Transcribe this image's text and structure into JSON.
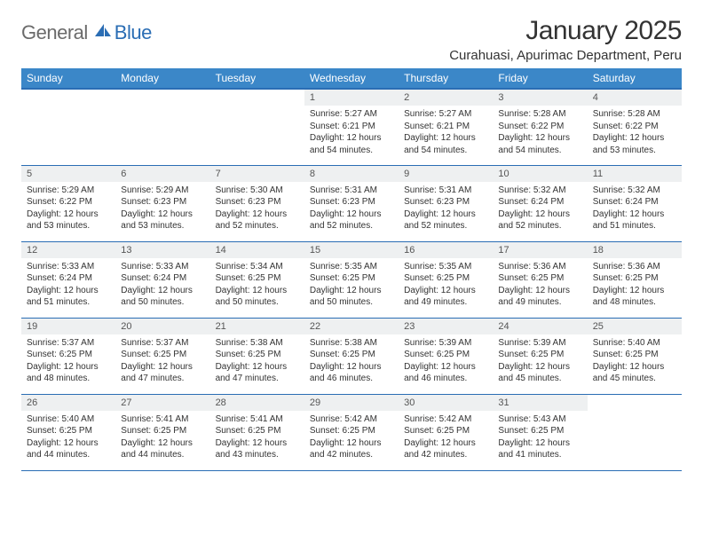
{
  "brand": {
    "part1": "General",
    "part2": "Blue"
  },
  "title": "January 2025",
  "location": "Curahuasi, Apurimac Department, Peru",
  "colors": {
    "header_bg": "#3b87c8",
    "header_border": "#2a6db4",
    "row_border": "#2a6db4",
    "daynum_bg": "#eef0f1",
    "brand_gray": "#6b6b6b",
    "brand_blue": "#2a6db4",
    "text": "#333333",
    "page_bg": "#ffffff"
  },
  "weekdays": [
    "Sunday",
    "Monday",
    "Tuesday",
    "Wednesday",
    "Thursday",
    "Friday",
    "Saturday"
  ],
  "weeks": [
    [
      null,
      null,
      null,
      {
        "n": "1",
        "sr": "5:27 AM",
        "ss": "6:21 PM",
        "dl": "12 hours and 54 minutes."
      },
      {
        "n": "2",
        "sr": "5:27 AM",
        "ss": "6:21 PM",
        "dl": "12 hours and 54 minutes."
      },
      {
        "n": "3",
        "sr": "5:28 AM",
        "ss": "6:22 PM",
        "dl": "12 hours and 54 minutes."
      },
      {
        "n": "4",
        "sr": "5:28 AM",
        "ss": "6:22 PM",
        "dl": "12 hours and 53 minutes."
      }
    ],
    [
      {
        "n": "5",
        "sr": "5:29 AM",
        "ss": "6:22 PM",
        "dl": "12 hours and 53 minutes."
      },
      {
        "n": "6",
        "sr": "5:29 AM",
        "ss": "6:23 PM",
        "dl": "12 hours and 53 minutes."
      },
      {
        "n": "7",
        "sr": "5:30 AM",
        "ss": "6:23 PM",
        "dl": "12 hours and 52 minutes."
      },
      {
        "n": "8",
        "sr": "5:31 AM",
        "ss": "6:23 PM",
        "dl": "12 hours and 52 minutes."
      },
      {
        "n": "9",
        "sr": "5:31 AM",
        "ss": "6:23 PM",
        "dl": "12 hours and 52 minutes."
      },
      {
        "n": "10",
        "sr": "5:32 AM",
        "ss": "6:24 PM",
        "dl": "12 hours and 52 minutes."
      },
      {
        "n": "11",
        "sr": "5:32 AM",
        "ss": "6:24 PM",
        "dl": "12 hours and 51 minutes."
      }
    ],
    [
      {
        "n": "12",
        "sr": "5:33 AM",
        "ss": "6:24 PM",
        "dl": "12 hours and 51 minutes."
      },
      {
        "n": "13",
        "sr": "5:33 AM",
        "ss": "6:24 PM",
        "dl": "12 hours and 50 minutes."
      },
      {
        "n": "14",
        "sr": "5:34 AM",
        "ss": "6:25 PM",
        "dl": "12 hours and 50 minutes."
      },
      {
        "n": "15",
        "sr": "5:35 AM",
        "ss": "6:25 PM",
        "dl": "12 hours and 50 minutes."
      },
      {
        "n": "16",
        "sr": "5:35 AM",
        "ss": "6:25 PM",
        "dl": "12 hours and 49 minutes."
      },
      {
        "n": "17",
        "sr": "5:36 AM",
        "ss": "6:25 PM",
        "dl": "12 hours and 49 minutes."
      },
      {
        "n": "18",
        "sr": "5:36 AM",
        "ss": "6:25 PM",
        "dl": "12 hours and 48 minutes."
      }
    ],
    [
      {
        "n": "19",
        "sr": "5:37 AM",
        "ss": "6:25 PM",
        "dl": "12 hours and 48 minutes."
      },
      {
        "n": "20",
        "sr": "5:37 AM",
        "ss": "6:25 PM",
        "dl": "12 hours and 47 minutes."
      },
      {
        "n": "21",
        "sr": "5:38 AM",
        "ss": "6:25 PM",
        "dl": "12 hours and 47 minutes."
      },
      {
        "n": "22",
        "sr": "5:38 AM",
        "ss": "6:25 PM",
        "dl": "12 hours and 46 minutes."
      },
      {
        "n": "23",
        "sr": "5:39 AM",
        "ss": "6:25 PM",
        "dl": "12 hours and 46 minutes."
      },
      {
        "n": "24",
        "sr": "5:39 AM",
        "ss": "6:25 PM",
        "dl": "12 hours and 45 minutes."
      },
      {
        "n": "25",
        "sr": "5:40 AM",
        "ss": "6:25 PM",
        "dl": "12 hours and 45 minutes."
      }
    ],
    [
      {
        "n": "26",
        "sr": "5:40 AM",
        "ss": "6:25 PM",
        "dl": "12 hours and 44 minutes."
      },
      {
        "n": "27",
        "sr": "5:41 AM",
        "ss": "6:25 PM",
        "dl": "12 hours and 44 minutes."
      },
      {
        "n": "28",
        "sr": "5:41 AM",
        "ss": "6:25 PM",
        "dl": "12 hours and 43 minutes."
      },
      {
        "n": "29",
        "sr": "5:42 AM",
        "ss": "6:25 PM",
        "dl": "12 hours and 42 minutes."
      },
      {
        "n": "30",
        "sr": "5:42 AM",
        "ss": "6:25 PM",
        "dl": "12 hours and 42 minutes."
      },
      {
        "n": "31",
        "sr": "5:43 AM",
        "ss": "6:25 PM",
        "dl": "12 hours and 41 minutes."
      },
      null
    ]
  ],
  "labels": {
    "sunrise": "Sunrise:",
    "sunset": "Sunset:",
    "daylight": "Daylight:"
  }
}
